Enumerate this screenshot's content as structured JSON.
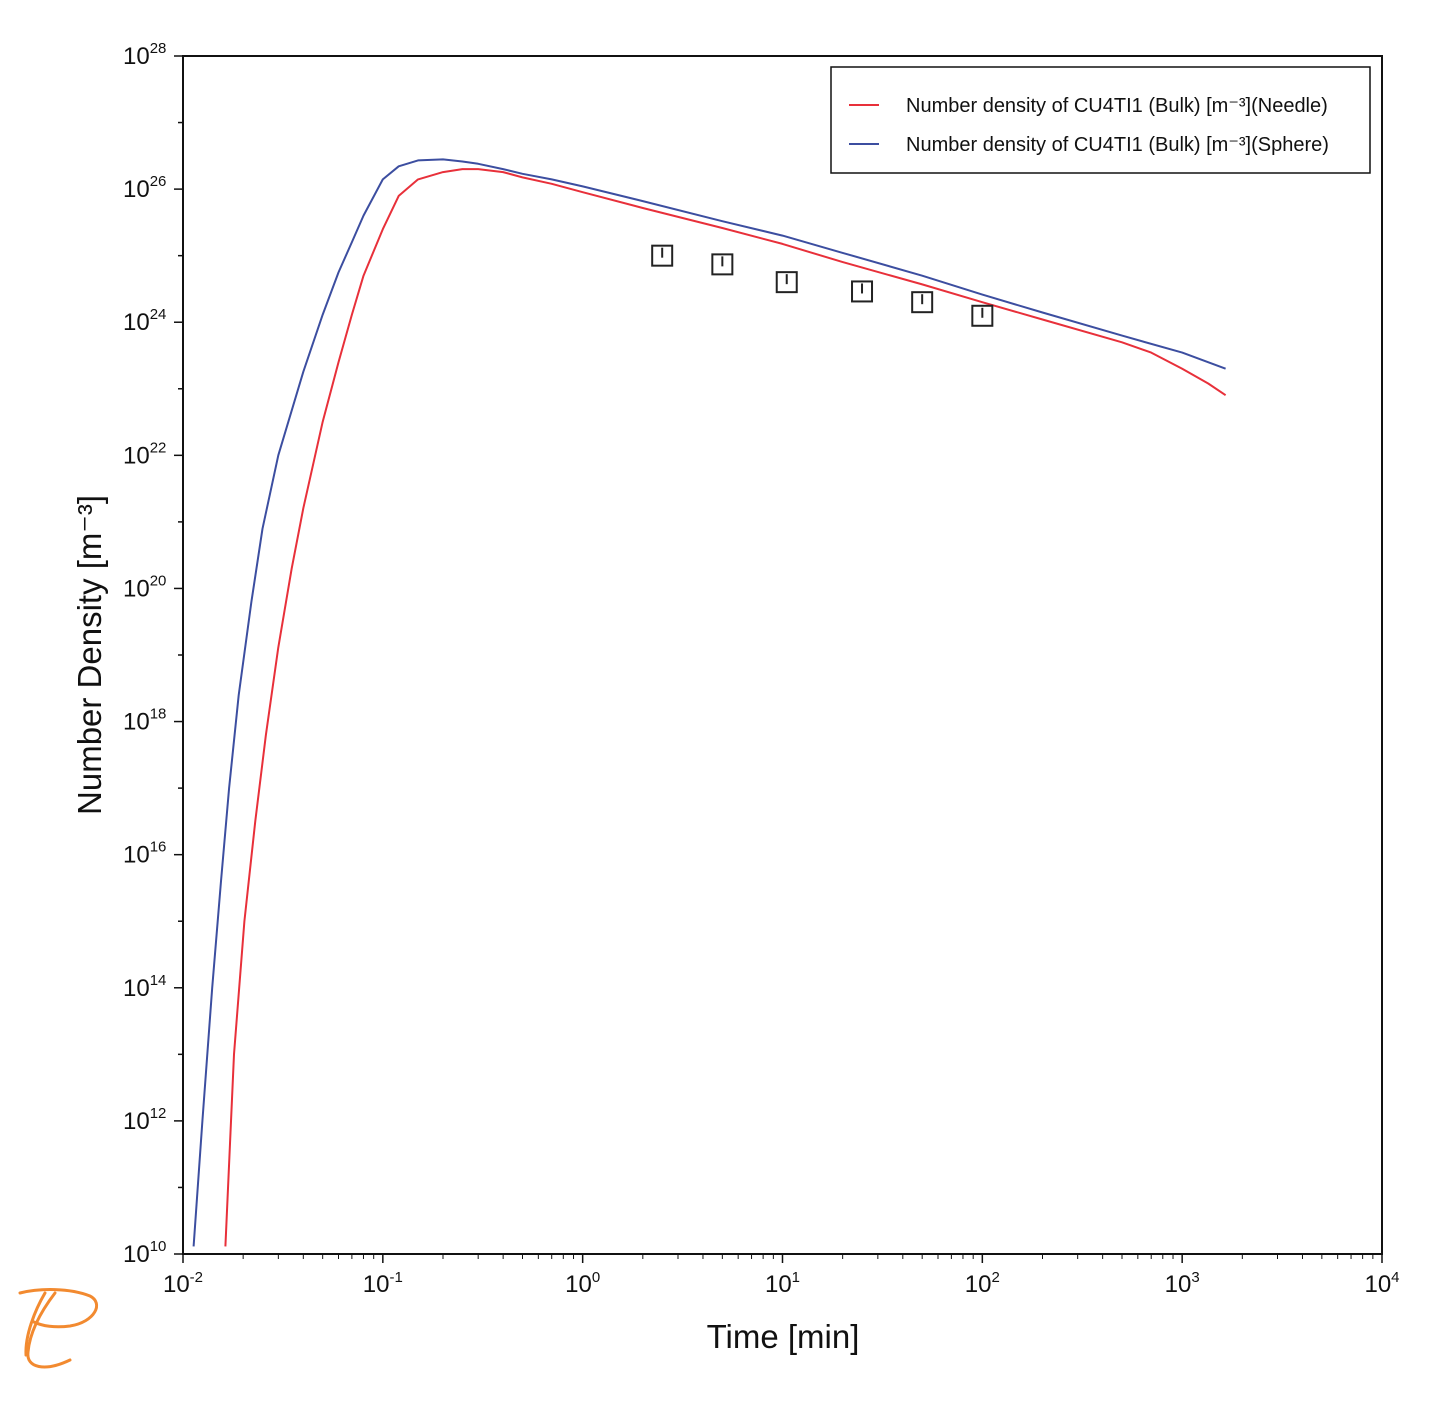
{
  "chart_data": {
    "type": "line",
    "xlabel": "Time [min]",
    "ylabel": "Number Density [m⁻³]",
    "xscale": "log",
    "yscale": "log",
    "xlim": [
      0.01,
      10000
    ],
    "ylim": [
      10000000000.0,
      1e+28
    ],
    "grid": false,
    "legend_position": "top-right",
    "x_ticks": [
      {
        "base": "10",
        "exp": "-2"
      },
      {
        "base": "10",
        "exp": "-1"
      },
      {
        "base": "10",
        "exp": "0"
      },
      {
        "base": "10",
        "exp": "1"
      },
      {
        "base": "10",
        "exp": "2"
      },
      {
        "base": "10",
        "exp": "3"
      },
      {
        "base": "10",
        "exp": "4"
      }
    ],
    "y_ticks": [
      {
        "base": "10",
        "exp": "10"
      },
      {
        "base": "10",
        "exp": "12"
      },
      {
        "base": "10",
        "exp": "14"
      },
      {
        "base": "10",
        "exp": "16"
      },
      {
        "base": "10",
        "exp": "18"
      },
      {
        "base": "10",
        "exp": "20"
      },
      {
        "base": "10",
        "exp": "22"
      },
      {
        "base": "10",
        "exp": "24"
      },
      {
        "base": "10",
        "exp": "26"
      },
      {
        "base": "10",
        "exp": "28"
      }
    ],
    "series": [
      {
        "name": "Number density of CU4TI1 (Bulk) [m⁻³](Needle)",
        "color": "#e8303a",
        "x": [
          0.0163,
          0.018,
          0.0203,
          0.023,
          0.026,
          0.03,
          0.035,
          0.04,
          0.05,
          0.06,
          0.07,
          0.08,
          0.1,
          0.12,
          0.15,
          0.2,
          0.25,
          0.3,
          0.4,
          0.5,
          0.7,
          1,
          2,
          5,
          10,
          20,
          50,
          100,
          200,
          500,
          700,
          1000,
          1350,
          1650
        ],
        "y": [
          13000000000.0,
          10000000000000.0,
          1000000000000000.0,
          3.2e+16,
          6.3e+17,
          1.3e+19,
          2e+20,
          1.6e+21,
          3.2e+22,
          2.5e+23,
          1.3e+24,
          5e+24,
          2.5e+25,
          7.9e+25,
          1.4e+26,
          1.8e+26,
          2e+26,
          2e+26,
          1.8e+26,
          1.5e+26,
          1.2e+26,
          9e+25,
          5.2e+25,
          2.6e+25,
          1.5e+25,
          8e+24,
          3.7e+24,
          2e+24,
          1.1e+24,
          5e+23,
          3.5e+23,
          2e+23,
          1.2e+23,
          8e+22
        ]
      },
      {
        "name": "Number density of CU4TI1 (Bulk) [m⁻³](Sphere)",
        "color": "#3c4ea0",
        "x": [
          0.0113,
          0.0125,
          0.014,
          0.0155,
          0.017,
          0.019,
          0.022,
          0.025,
          0.03,
          0.04,
          0.05,
          0.06,
          0.07,
          0.08,
          0.1,
          0.12,
          0.15,
          0.2,
          0.25,
          0.3,
          0.4,
          0.5,
          0.7,
          1,
          2,
          5,
          10,
          20,
          50,
          100,
          200,
          500,
          1000,
          1650
        ],
        "y": [
          13000000000.0,
          1000000000000.0,
          100000000000000.0,
          4000000000000000.0,
          1e+17,
          2.5e+18,
          6.3e+19,
          7.9e+20,
          1e+22,
          1.8e+23,
          1.3e+24,
          5.6e+24,
          1.6e+25,
          4e+25,
          1.4e+26,
          2.2e+26,
          2.7e+26,
          2.8e+26,
          2.6e+26,
          2.4e+26,
          2e+26,
          1.7e+26,
          1.4e+26,
          1.1e+26,
          6.6e+25,
          3.3e+25,
          2e+25,
          1.1e+25,
          5e+24,
          2.6e+24,
          1.4e+24,
          6.3e+23,
          3.5e+23,
          2e+23
        ]
      },
      {
        "name": "",
        "type": "scatter",
        "marker": "square",
        "color": "#222222",
        "x": [
          2.5,
          5,
          10.5,
          25,
          50,
          100
        ],
        "y": [
          1e+25,
          7.4e+24,
          4e+24,
          2.9e+24,
          2e+24,
          1.25e+24
        ],
        "y_err": [
          3e+24,
          2e+23,
          1e+23,
          1e+23,
          1e+23,
          5e+22
        ]
      }
    ]
  },
  "logo": {
    "name": "thermo-calc-logo",
    "color": "#f28a30"
  }
}
